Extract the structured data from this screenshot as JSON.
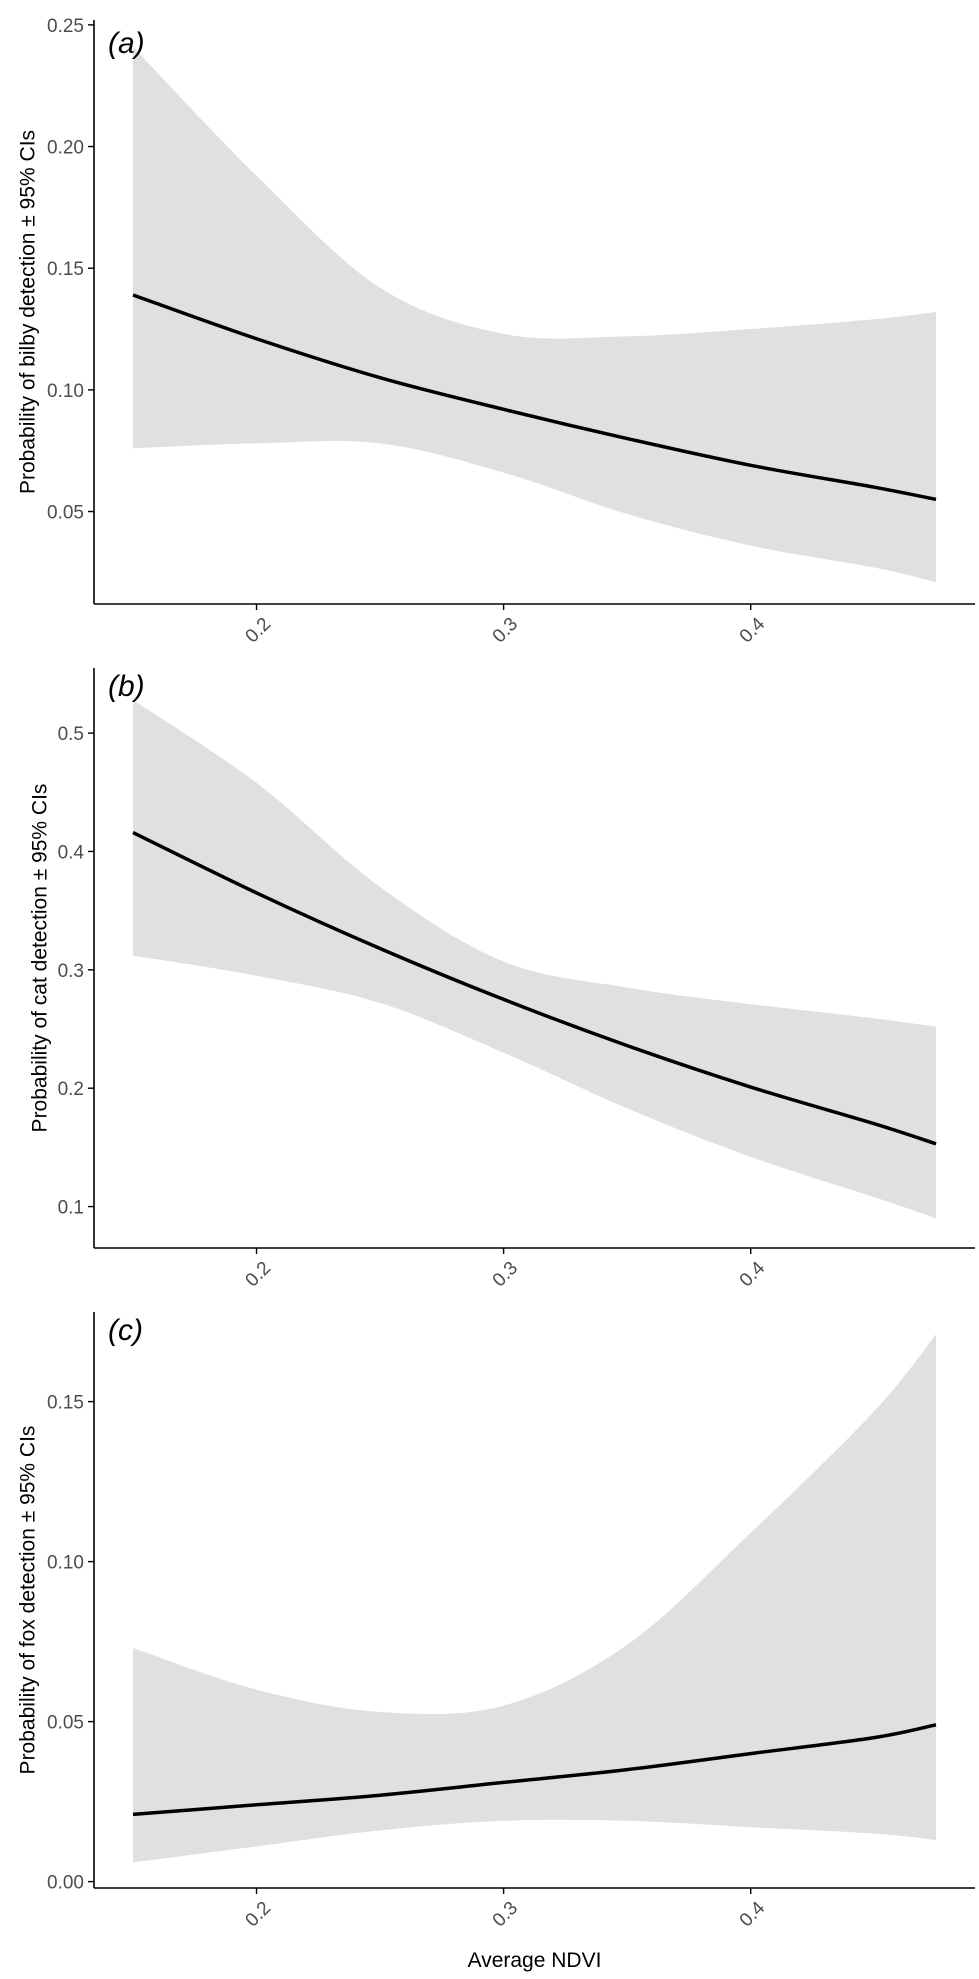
{
  "colors": {
    "ribbon": "#e0e0e0",
    "line": "#000000",
    "axis": "#000000"
  },
  "chart_data": [
    {
      "type": "line",
      "panel_label": "(a)",
      "xlabel": "",
      "ylabel": "Probability of bilby detection ± 95% CIs",
      "xlim": [
        0.15,
        0.475
      ],
      "ylim": [
        0.012,
        0.252
      ],
      "xticks": [
        0.2,
        0.3,
        0.4
      ],
      "xtick_labels": [
        "0.2",
        "0.3",
        "0.4"
      ],
      "yticks": [
        0.05,
        0.1,
        0.15,
        0.2,
        0.25
      ],
      "ytick_labels": [
        "0.05",
        "0.10",
        "0.15",
        "0.20",
        "0.25"
      ],
      "x": [
        0.15,
        0.2,
        0.25,
        0.3,
        0.35,
        0.4,
        0.45,
        0.475
      ],
      "fit": [
        0.139,
        0.121,
        0.105,
        0.092,
        0.08,
        0.069,
        0.06,
        0.055
      ],
      "lower": [
        0.076,
        0.078,
        0.078,
        0.066,
        0.049,
        0.036,
        0.027,
        0.021
      ],
      "upper": [
        0.241,
        0.188,
        0.142,
        0.123,
        0.122,
        0.125,
        0.129,
        0.132
      ],
      "grid": false
    },
    {
      "type": "line",
      "panel_label": "(b)",
      "xlabel": "",
      "ylabel": "Probability of cat detection ± 95% CIs",
      "xlim": [
        0.15,
        0.475
      ],
      "ylim": [
        0.065,
        0.555
      ],
      "xticks": [
        0.2,
        0.3,
        0.4
      ],
      "xtick_labels": [
        "0.2",
        "0.3",
        "0.4"
      ],
      "yticks": [
        0.1,
        0.2,
        0.3,
        0.4,
        0.5
      ],
      "ytick_labels": [
        "0.1",
        "0.2",
        "0.3",
        "0.4",
        "0.5"
      ],
      "x": [
        0.15,
        0.2,
        0.25,
        0.3,
        0.35,
        0.4,
        0.45,
        0.475
      ],
      "fit": [
        0.416,
        0.365,
        0.318,
        0.275,
        0.236,
        0.201,
        0.17,
        0.153
      ],
      "lower": [
        0.312,
        0.295,
        0.272,
        0.23,
        0.183,
        0.142,
        0.108,
        0.09
      ],
      "upper": [
        0.528,
        0.458,
        0.37,
        0.307,
        0.285,
        0.271,
        0.259,
        0.252
      ],
      "grid": false
    },
    {
      "type": "line",
      "panel_label": "(c)",
      "xlabel": "Average NDVI",
      "ylabel": "Probability of fox detection ± 95% CIs",
      "xlim": [
        0.15,
        0.475
      ],
      "ylim": [
        -0.002,
        0.178
      ],
      "xticks": [
        0.2,
        0.3,
        0.4
      ],
      "xtick_labels": [
        "0.2",
        "0.3",
        "0.4"
      ],
      "yticks": [
        0.0,
        0.05,
        0.1,
        0.15
      ],
      "ytick_labels": [
        "0.00",
        "0.05",
        "0.10",
        "0.15"
      ],
      "x": [
        0.15,
        0.2,
        0.25,
        0.3,
        0.35,
        0.4,
        0.45,
        0.475
      ],
      "fit": [
        0.021,
        0.024,
        0.027,
        0.031,
        0.035,
        0.04,
        0.045,
        0.049
      ],
      "lower": [
        0.006,
        0.011,
        0.016,
        0.019,
        0.019,
        0.017,
        0.015,
        0.013
      ],
      "upper": [
        0.073,
        0.06,
        0.053,
        0.055,
        0.074,
        0.109,
        0.147,
        0.171
      ],
      "grid": false
    }
  ]
}
